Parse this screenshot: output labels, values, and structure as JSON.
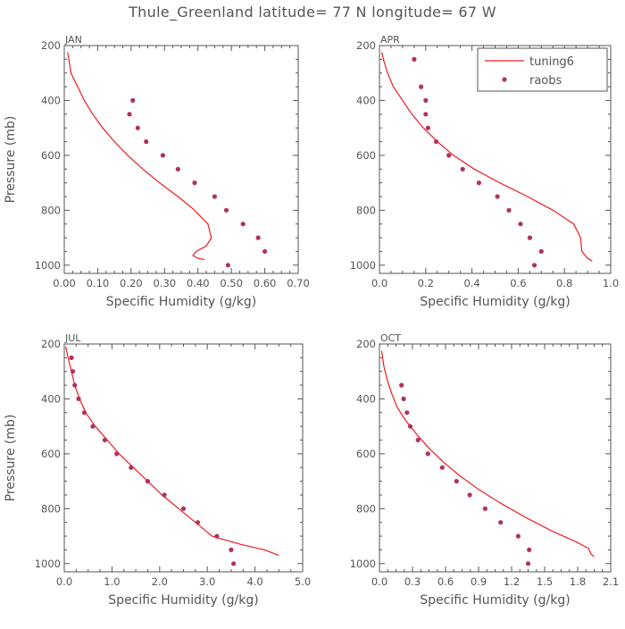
{
  "title": "Thule_Greenland  latitude= 77 N longitude= 67 W",
  "chart_data": [
    {
      "type": "line",
      "panel": "JAN",
      "xlabel": "Specific Humidity (g/kg)",
      "ylabel": "Pressure (mb)",
      "xlim": [
        0,
        0.7
      ],
      "ylim": [
        1030,
        200
      ],
      "xticks": [
        "0.00",
        "0.10",
        "0.20",
        "0.30",
        "0.40",
        "0.50",
        "0.60",
        "0.70"
      ],
      "yticks": [
        "200",
        "400",
        "600",
        "800",
        "1000"
      ],
      "series": [
        {
          "name": "tuning6",
          "style": "line",
          "color": "#ee1c1c",
          "points": [
            [
              0.01,
              225
            ],
            [
              0.015,
              260
            ],
            [
              0.02,
              300
            ],
            [
              0.04,
              350
            ],
            [
              0.06,
              400
            ],
            [
              0.085,
              450
            ],
            [
              0.115,
              500
            ],
            [
              0.15,
              550
            ],
            [
              0.19,
              600
            ],
            [
              0.235,
              650
            ],
            [
              0.285,
              700
            ],
            [
              0.34,
              750
            ],
            [
              0.39,
              800
            ],
            [
              0.43,
              850
            ],
            [
              0.44,
              900
            ],
            [
              0.425,
              930
            ],
            [
              0.395,
              950
            ],
            [
              0.385,
              965
            ],
            [
              0.4,
              975
            ],
            [
              0.42,
              980
            ]
          ]
        },
        {
          "name": "raobs",
          "style": "dots",
          "color": "#b23060",
          "points": [
            [
              0.205,
              400
            ],
            [
              0.195,
              450
            ],
            [
              0.22,
              500
            ],
            [
              0.245,
              550
            ],
            [
              0.295,
              600
            ],
            [
              0.34,
              650
            ],
            [
              0.39,
              700
            ],
            [
              0.45,
              750
            ],
            [
              0.485,
              800
            ],
            [
              0.535,
              850
            ],
            [
              0.58,
              900
            ],
            [
              0.6,
              950
            ],
            [
              0.49,
              1000
            ]
          ]
        }
      ]
    },
    {
      "type": "line",
      "panel": "APR",
      "xlabel": "Specific Humidity (g/kg)",
      "ylabel": "",
      "xlim": [
        0,
        1.0
      ],
      "ylim": [
        1030,
        200
      ],
      "xticks": [
        "0.0",
        "0.2",
        "0.4",
        "0.6",
        "0.8",
        "1.0"
      ],
      "yticks": [
        "200",
        "400",
        "600",
        "800",
        "1000"
      ],
      "legend": {
        "position": "top-right",
        "entries": [
          "tuning6",
          "raobs"
        ]
      },
      "series": [
        {
          "name": "tuning6",
          "style": "line",
          "color": "#ee1c1c",
          "points": [
            [
              0.01,
              225
            ],
            [
              0.02,
              260
            ],
            [
              0.035,
              300
            ],
            [
              0.06,
              350
            ],
            [
              0.1,
              400
            ],
            [
              0.14,
              450
            ],
            [
              0.19,
              500
            ],
            [
              0.25,
              550
            ],
            [
              0.32,
              600
            ],
            [
              0.41,
              650
            ],
            [
              0.52,
              700
            ],
            [
              0.64,
              750
            ],
            [
              0.75,
              800
            ],
            [
              0.84,
              850
            ],
            [
              0.87,
              900
            ],
            [
              0.875,
              950
            ],
            [
              0.9,
              975
            ],
            [
              0.92,
              985
            ]
          ]
        },
        {
          "name": "raobs",
          "style": "dots",
          "color": "#b23060",
          "points": [
            [
              0.15,
              250
            ],
            [
              0.18,
              350
            ],
            [
              0.2,
              400
            ],
            [
              0.2,
              450
            ],
            [
              0.21,
              500
            ],
            [
              0.245,
              550
            ],
            [
              0.3,
              600
            ],
            [
              0.36,
              650
            ],
            [
              0.43,
              700
            ],
            [
              0.51,
              750
            ],
            [
              0.56,
              800
            ],
            [
              0.61,
              850
            ],
            [
              0.65,
              900
            ],
            [
              0.7,
              950
            ],
            [
              0.67,
              1000
            ]
          ]
        }
      ]
    },
    {
      "type": "line",
      "panel": "JUL",
      "xlabel": "Specific Humidity (g/kg)",
      "ylabel": "Pressure (mb)",
      "xlim": [
        0,
        5.0
      ],
      "ylim": [
        1030,
        200
      ],
      "xticks": [
        "0.0",
        "1.0",
        "2.0",
        "3.0",
        "4.0",
        "5.0"
      ],
      "yticks": [
        "200",
        "400",
        "600",
        "800",
        "1000"
      ],
      "series": [
        {
          "name": "tuning6",
          "style": "line",
          "color": "#ee1c1c",
          "points": [
            [
              0.03,
              210
            ],
            [
              0.08,
              250
            ],
            [
              0.15,
              300
            ],
            [
              0.22,
              350
            ],
            [
              0.32,
              400
            ],
            [
              0.45,
              450
            ],
            [
              0.65,
              500
            ],
            [
              0.9,
              550
            ],
            [
              1.15,
              600
            ],
            [
              1.45,
              650
            ],
            [
              1.75,
              700
            ],
            [
              2.05,
              750
            ],
            [
              2.4,
              800
            ],
            [
              2.75,
              850
            ],
            [
              3.1,
              900
            ],
            [
              3.7,
              930
            ],
            [
              4.2,
              950
            ],
            [
              4.5,
              970
            ]
          ]
        },
        {
          "name": "raobs",
          "style": "dots",
          "color": "#b23060",
          "points": [
            [
              0.15,
              250
            ],
            [
              0.18,
              300
            ],
            [
              0.22,
              350
            ],
            [
              0.3,
              400
            ],
            [
              0.42,
              450
            ],
            [
              0.6,
              500
            ],
            [
              0.85,
              550
            ],
            [
              1.1,
              600
            ],
            [
              1.4,
              650
            ],
            [
              1.75,
              700
            ],
            [
              2.1,
              750
            ],
            [
              2.5,
              800
            ],
            [
              2.8,
              850
            ],
            [
              3.2,
              900
            ],
            [
              3.5,
              950
            ],
            [
              3.55,
              1000
            ]
          ]
        }
      ]
    },
    {
      "type": "line",
      "panel": "OCT",
      "xlabel": "Specific Humidity (g/kg)",
      "ylabel": "",
      "xlim": [
        0,
        2.1
      ],
      "ylim": [
        1030,
        200
      ],
      "xticks": [
        "0.0",
        "0.3",
        "0.6",
        "0.9",
        "1.2",
        "1.5",
        "1.8",
        "2.1"
      ],
      "yticks": [
        "200",
        "400",
        "600",
        "800",
        "1000"
      ],
      "series": [
        {
          "name": "tuning6",
          "style": "line",
          "color": "#ee1c1c",
          "points": [
            [
              0.02,
              225
            ],
            [
              0.04,
              280
            ],
            [
              0.07,
              330
            ],
            [
              0.11,
              380
            ],
            [
              0.16,
              430
            ],
            [
              0.24,
              480
            ],
            [
              0.34,
              530
            ],
            [
              0.45,
              580
            ],
            [
              0.58,
              630
            ],
            [
              0.73,
              680
            ],
            [
              0.9,
              730
            ],
            [
              1.1,
              780
            ],
            [
              1.32,
              830
            ],
            [
              1.56,
              880
            ],
            [
              1.78,
              920
            ],
            [
              1.9,
              945
            ],
            [
              1.92,
              965
            ],
            [
              1.95,
              975
            ]
          ]
        },
        {
          "name": "raobs",
          "style": "dots",
          "color": "#b23060",
          "points": [
            [
              0.2,
              350
            ],
            [
              0.22,
              400
            ],
            [
              0.25,
              450
            ],
            [
              0.28,
              500
            ],
            [
              0.35,
              550
            ],
            [
              0.44,
              600
            ],
            [
              0.57,
              650
            ],
            [
              0.7,
              700
            ],
            [
              0.82,
              750
            ],
            [
              0.96,
              800
            ],
            [
              1.1,
              850
            ],
            [
              1.26,
              900
            ],
            [
              1.36,
              950
            ],
            [
              1.35,
              1000
            ]
          ]
        }
      ]
    }
  ]
}
